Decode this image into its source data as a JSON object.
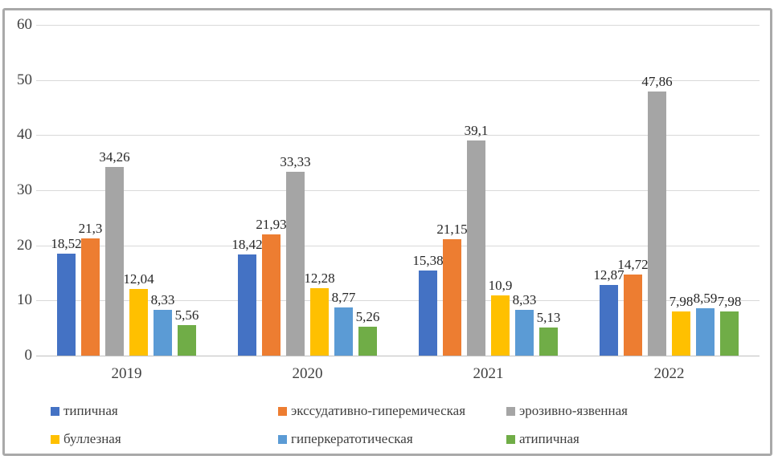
{
  "chart_data": {
    "type": "bar",
    "title": "",
    "xlabel": "",
    "ylabel": "",
    "categories": [
      "2019",
      "2020",
      "2021",
      "2022"
    ],
    "series": [
      {
        "name": "типичная",
        "color": "#4472C4",
        "values": [
          18.52,
          18.42,
          15.38,
          12.87
        ],
        "labels": [
          "18,52",
          "18,42",
          "15,38",
          "12,87"
        ]
      },
      {
        "name": "экссудативно-гиперемическая",
        "color": "#ED7D31",
        "values": [
          21.3,
          21.93,
          21.15,
          14.72
        ],
        "labels": [
          "21,3",
          "21,93",
          "21,15",
          "14,72"
        ]
      },
      {
        "name": "эрозивно-язвенная",
        "color": "#A5A5A5",
        "values": [
          34.26,
          33.33,
          39.1,
          47.86
        ],
        "labels": [
          "34,26",
          "33,33",
          "39,1",
          "47,86"
        ]
      },
      {
        "name": "буллезная",
        "color": "#FFC000",
        "values": [
          12.04,
          12.28,
          10.9,
          7.98
        ],
        "labels": [
          "12,04",
          "12,28",
          "10,9",
          "7,98"
        ]
      },
      {
        "name": "гиперкератотическая",
        "color": "#5B9BD5",
        "values": [
          8.33,
          8.77,
          8.33,
          8.59
        ],
        "labels": [
          "8,33",
          "8,77",
          "8,33",
          "8,59"
        ]
      },
      {
        "name": "атипичная",
        "color": "#70AD47",
        "values": [
          5.56,
          5.26,
          5.13,
          7.98
        ],
        "labels": [
          "5,56",
          "5,26",
          "5,13",
          "7,98"
        ]
      }
    ],
    "ylim": [
      0,
      60
    ],
    "yticks": [
      0,
      10,
      20,
      30,
      40,
      50,
      60
    ],
    "grid": true,
    "legend_position": "bottom",
    "decimal_separator": ",",
    "colors": {
      "gridline": "#d9d9d9",
      "axis_line": "#bfbfbf",
      "axis_text": "#404040",
      "label_text": "#262626",
      "frame_border": "#a9a9a9"
    }
  }
}
